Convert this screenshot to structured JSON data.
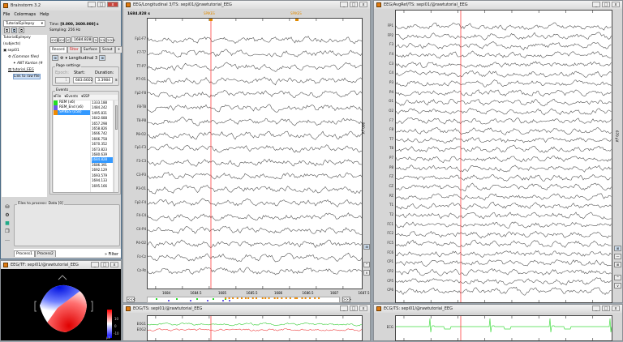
{
  "main_window": {
    "title": "Brainstorm 3.2",
    "menu": [
      "File",
      "Colormaps",
      "Help"
    ],
    "protocol": "TutorialEpilepsy",
    "tree": {
      "root": "TutorialEpilepsy (subjects)",
      "subject": "sepi01",
      "common_files": "(Common files)",
      "anat": "ANT Kanton (#",
      "condition": "tutorial_EEG",
      "link": "Link to raw file"
    },
    "time_label": "Time:",
    "time_value": "[0.000, 3600.000] s",
    "sampling": "Sampling: 256 Hz",
    "nav_buttons": [
      "<<<",
      "<<",
      "<",
      ">",
      ">>",
      ">>>"
    ],
    "current_time": "1684.828",
    "tabs": [
      "Record",
      "Filter",
      "Surface",
      "Scout",
      "+"
    ],
    "montage": "Longitudinal 3",
    "page_settings": {
      "title": "Page settings",
      "epoch_label": "Epoch:",
      "epoch_value": "1",
      "start_label": "Start:",
      "start_value": "683.6602",
      "duration_label": "Duration:",
      "duration_value": "3.3984",
      "unit": "s"
    },
    "events": {
      "title": "Events",
      "menu": [
        "File",
        "Events",
        "SSP"
      ],
      "groups": [
        {
          "label": "REM (x6)",
          "color": "#22dd22"
        },
        {
          "label": "REM_End (x6)",
          "color": "#6a5ae8"
        },
        {
          "label": "SPIKES (x58)",
          "color": "#f08a00",
          "selected": true
        }
      ],
      "times": [
        "1333.188",
        "1484.242",
        "1495.831",
        "1642.688",
        "1657.298",
        "1658.826",
        "1666.742",
        "1666.758",
        "1670.352",
        "1673.823",
        "1680.639",
        "1684.828",
        "1686.391",
        "1692.129",
        "1693.579",
        "1694.133",
        "1695.166"
      ],
      "selected_time": "1684.828"
    },
    "process": {
      "files_label": "Files to process: Data [0]",
      "tabs": [
        "Process1",
        "Process2"
      ],
      "filter": "» Filter"
    }
  },
  "topo_window": {
    "title": "EEG/TF: sepi01/@rawtutorial_EEG",
    "colorbar_ticks": [
      "10",
      "0",
      "-10"
    ],
    "unit": "µV",
    "colors": {
      "pos": "#ff0000",
      "neg": "#0000ff"
    }
  },
  "eeg_bipolar": {
    "title": "EEG/Longitudinal 3/TS: sepi01/@rawtutorial_EEG",
    "time_readout": "1684.828 s",
    "event_markers": [
      "SPIKES",
      "SPIKES"
    ],
    "channels": [
      "Fp1-F7",
      "F7-T7",
      "T7-P7",
      "P7-O1",
      "Fp2-F8",
      "F8-T8",
      "T8-P8",
      "P8-O2",
      "Fp1-F3",
      "F3-C3",
      "C3-P3",
      "P3-O1",
      "Fp2-F4",
      "F4-C4",
      "C4-P4",
      "P4-O2",
      "Fz-Cz",
      "Cz-Pz"
    ],
    "x_ticks": [
      "1684",
      "1684.5",
      "1685",
      "1685.5",
      "1686",
      "1686.5",
      "1687",
      "1687.5"
    ],
    "scale": "900 µV",
    "scroll_buttons": [
      "<<<",
      ">>>"
    ],
    "cursor_color": "#ff4040"
  },
  "eeg_avgref": {
    "title": "EEG/AvgRef/TS: sepi01/@rawtutorial_EEG",
    "channels": [
      "FP1",
      "FP2",
      "F3",
      "F4",
      "C3",
      "C4",
      "P3",
      "P4",
      "O1",
      "O2",
      "F7",
      "F8",
      "T7",
      "T8",
      "P7",
      "P8",
      "FZ",
      "CZ",
      "PZ",
      "T1",
      "T2",
      "FC1",
      "FC2",
      "FC5",
      "FC6",
      "CP1",
      "CP2",
      "CP5",
      "CP6"
    ],
    "scale": "670 µV"
  },
  "eog": {
    "title": "EOG/TS: sepi01/@rawtutorial_EEG",
    "channels": [
      {
        "name": "EOG1",
        "color": "#33cc33"
      },
      {
        "name": "EOG2",
        "color": "#ee4444"
      }
    ]
  },
  "ecg": {
    "title": "ECG/TS: sepi01/@rawtutorial_EEG",
    "channels": [
      {
        "name": "ECG",
        "color": "#44dd44"
      }
    ]
  }
}
